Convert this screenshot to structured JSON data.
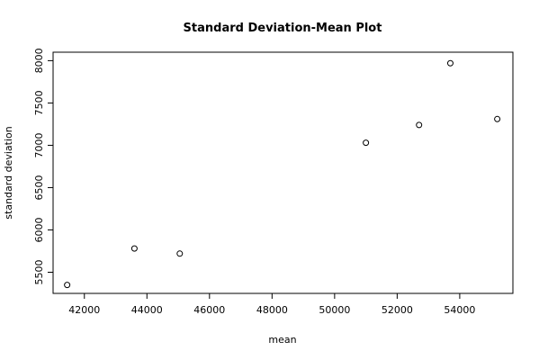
{
  "chart_data": {
    "type": "scatter",
    "title": "Standard Deviation-Mean Plot",
    "xlabel": "mean",
    "ylabel": "standard deviation",
    "xlim": [
      41000,
      55700
    ],
    "ylim": [
      5250,
      8100
    ],
    "x_ticks": [
      42000,
      44000,
      46000,
      48000,
      50000,
      52000,
      54000
    ],
    "y_ticks": [
      5500,
      6000,
      6500,
      7000,
      7500,
      8000
    ],
    "points": [
      {
        "x": 41450,
        "y": 5350
      },
      {
        "x": 43600,
        "y": 5780
      },
      {
        "x": 45050,
        "y": 5720
      },
      {
        "x": 51000,
        "y": 7030
      },
      {
        "x": 52700,
        "y": 7240
      },
      {
        "x": 53700,
        "y": 7970
      },
      {
        "x": 55200,
        "y": 7310
      }
    ],
    "grid": false,
    "legend": "none"
  }
}
